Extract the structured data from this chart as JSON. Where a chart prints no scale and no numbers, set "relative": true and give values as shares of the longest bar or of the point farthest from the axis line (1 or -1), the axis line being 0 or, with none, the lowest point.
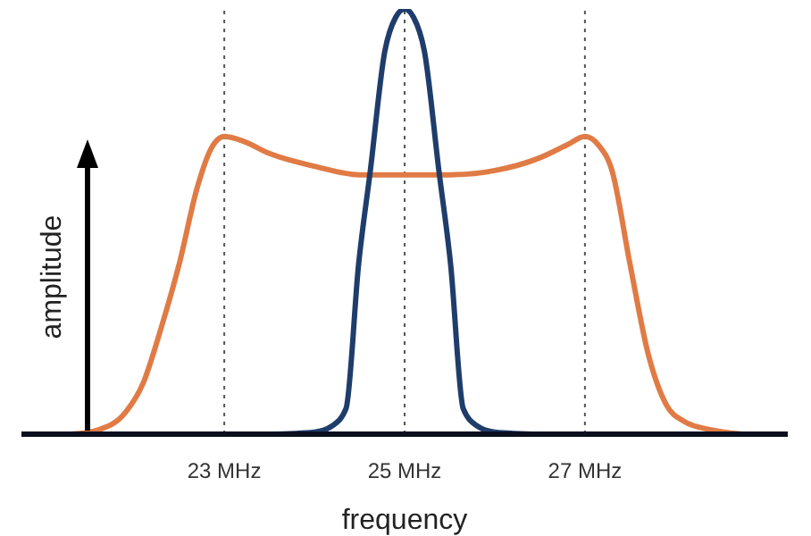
{
  "chart_data": {
    "type": "line",
    "relative": true,
    "xlabel": "frequency",
    "ylabel": "amplitude",
    "xlim": [
      20.75,
      29.25
    ],
    "xticks": [
      {
        "value": 23,
        "label": "23 MHz"
      },
      {
        "value": 25,
        "label": "25 MHz"
      },
      {
        "value": 27,
        "label": "27 MHz"
      }
    ],
    "grid": false,
    "line_style": "solid",
    "ref_lines": [
      {
        "axis": "x",
        "value": 23,
        "color": "#555555",
        "line_style": "dotted"
      },
      {
        "axis": "x",
        "value": 25,
        "color": "#555555",
        "line_style": "dotted"
      },
      {
        "axis": "x",
        "value": 27,
        "color": "#555555",
        "line_style": "dotted"
      }
    ],
    "series": [
      {
        "color": "#e07b45",
        "x": [
          21.3,
          21.6,
          21.9,
          22.1,
          22.3,
          22.5,
          22.7,
          22.85,
          23,
          23.2,
          23.5,
          24,
          24.5,
          25,
          25.5,
          26,
          26.5,
          26.8,
          27,
          27.15,
          27.3,
          27.5,
          27.7,
          27.9,
          28.1,
          28.4,
          28.75
        ],
        "values": [
          0,
          0.01,
          0.05,
          0.12,
          0.25,
          0.4,
          0.58,
          0.67,
          0.7,
          0.69,
          0.66,
          0.63,
          0.61,
          0.61,
          0.61,
          0.62,
          0.65,
          0.68,
          0.7,
          0.68,
          0.62,
          0.4,
          0.19,
          0.07,
          0.03,
          0.01,
          0
        ]
      },
      {
        "color": "#1f3d6b",
        "x": [
          23.5,
          24,
          24.2,
          24.35,
          24.49,
          24.62,
          24.78,
          24.9,
          25,
          25.1,
          25.22,
          25.38,
          25.51,
          25.65,
          25.8,
          26,
          26.5
        ],
        "values": [
          0,
          0.005,
          0.02,
          0.06,
          0.4,
          0.62,
          0.9,
          0.98,
          1,
          0.98,
          0.9,
          0.62,
          0.4,
          0.06,
          0.02,
          0.005,
          0
        ]
      }
    ]
  }
}
